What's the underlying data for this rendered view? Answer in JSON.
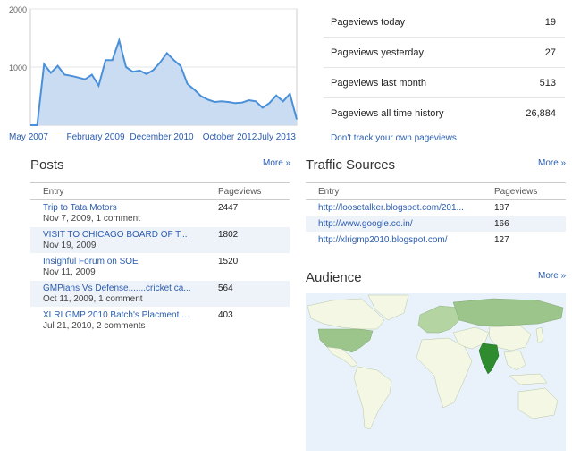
{
  "chart_data": {
    "type": "area",
    "x_labels": [
      "May 2007",
      "February 2009",
      "December 2010",
      "October 2012",
      "July 2013"
    ],
    "y_ticks": [
      "2000",
      "1000"
    ],
    "ylim": [
      0,
      2000
    ],
    "values": [
      0,
      0,
      1050,
      900,
      1020,
      870,
      850,
      820,
      790,
      870,
      680,
      1120,
      1120,
      1460,
      1000,
      920,
      940,
      880,
      950,
      1080,
      1240,
      1120,
      1020,
      710,
      610,
      500,
      440,
      400,
      410,
      400,
      380,
      390,
      430,
      410,
      300,
      380,
      510,
      410,
      540,
      100
    ],
    "colors": {
      "line": "#4a90d9",
      "fill": "#c9dcf2"
    }
  },
  "stats": [
    {
      "label": "Pageviews today",
      "value": "19"
    },
    {
      "label": "Pageviews yesterday",
      "value": "27"
    },
    {
      "label": "Pageviews last month",
      "value": "513"
    },
    {
      "label": "Pageviews all time history",
      "value": "26,884"
    }
  ],
  "dont_track": "Don't track your own pageviews",
  "posts": {
    "title": "Posts",
    "more": "More »",
    "col1": "Entry",
    "col2": "Pageviews",
    "rows": [
      {
        "title": "Trip to Tata Motors",
        "meta": "Nov 7, 2009, 1 comment",
        "views": "2447"
      },
      {
        "title": "VISIT TO CHICAGO BOARD OF T...",
        "meta": "Nov 19, 2009",
        "views": "1802"
      },
      {
        "title": "Insighful Forum on SOE",
        "meta": "Nov 11, 2009",
        "views": "1520"
      },
      {
        "title": "GMPians Vs Defense.......cricket ca...",
        "meta": "Oct 11, 2009, 1 comment",
        "views": "564"
      },
      {
        "title": "XLRI GMP 2010 Batch's Placment ...",
        "meta": "Jul 21, 2010, 2 comments",
        "views": "403"
      }
    ]
  },
  "traffic": {
    "title": "Traffic Sources",
    "more": "More »",
    "col1": "Entry",
    "col2": "Pageviews",
    "rows": [
      {
        "url": "http://loosetalker.blogspot.com/201...",
        "views": "187"
      },
      {
        "url": "http://www.google.co.in/",
        "views": "166"
      },
      {
        "url": "http://xlrigmp2010.blogspot.com/",
        "views": "127"
      }
    ]
  },
  "audience": {
    "title": "Audience",
    "more": "More »",
    "colors": {
      "ocean": "#e9f2fb",
      "land": "#f4f7e4",
      "mid": "#9cc58b",
      "high": "#2e8b2e"
    }
  }
}
